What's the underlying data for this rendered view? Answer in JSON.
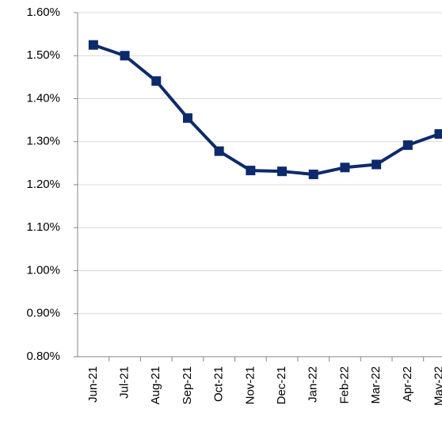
{
  "chart_data": {
    "type": "line",
    "categories": [
      "Jun-21",
      "Jul-21",
      "Aug-21",
      "Sep-21",
      "Oct-21",
      "Nov-21",
      "Dec-21",
      "Jan-22",
      "Feb-22",
      "Mar-22",
      "Apr-22",
      "May-22"
    ],
    "series": [
      {
        "color": "#0d2a6b",
        "values": [
          1.525,
          1.5,
          1.441,
          1.355,
          1.278,
          1.233,
          1.231,
          1.224,
          1.24,
          1.247,
          1.292,
          1.318
        ]
      }
    ],
    "ylim": [
      0.8,
      1.6
    ],
    "yticks": [
      {
        "value": 0.8,
        "label": "0.80%"
      },
      {
        "value": 0.9,
        "label": "0.90%"
      },
      {
        "value": 1.0,
        "label": "1.00%"
      },
      {
        "value": 1.1,
        "label": "1.10%"
      },
      {
        "value": 1.2,
        "label": "1.20%"
      },
      {
        "value": 1.3,
        "label": "1.30%"
      },
      {
        "value": 1.4,
        "label": "1.40%"
      },
      {
        "value": 1.5,
        "label": "1.50%"
      },
      {
        "value": 1.6,
        "label": "1.60%"
      }
    ],
    "grid": true
  }
}
